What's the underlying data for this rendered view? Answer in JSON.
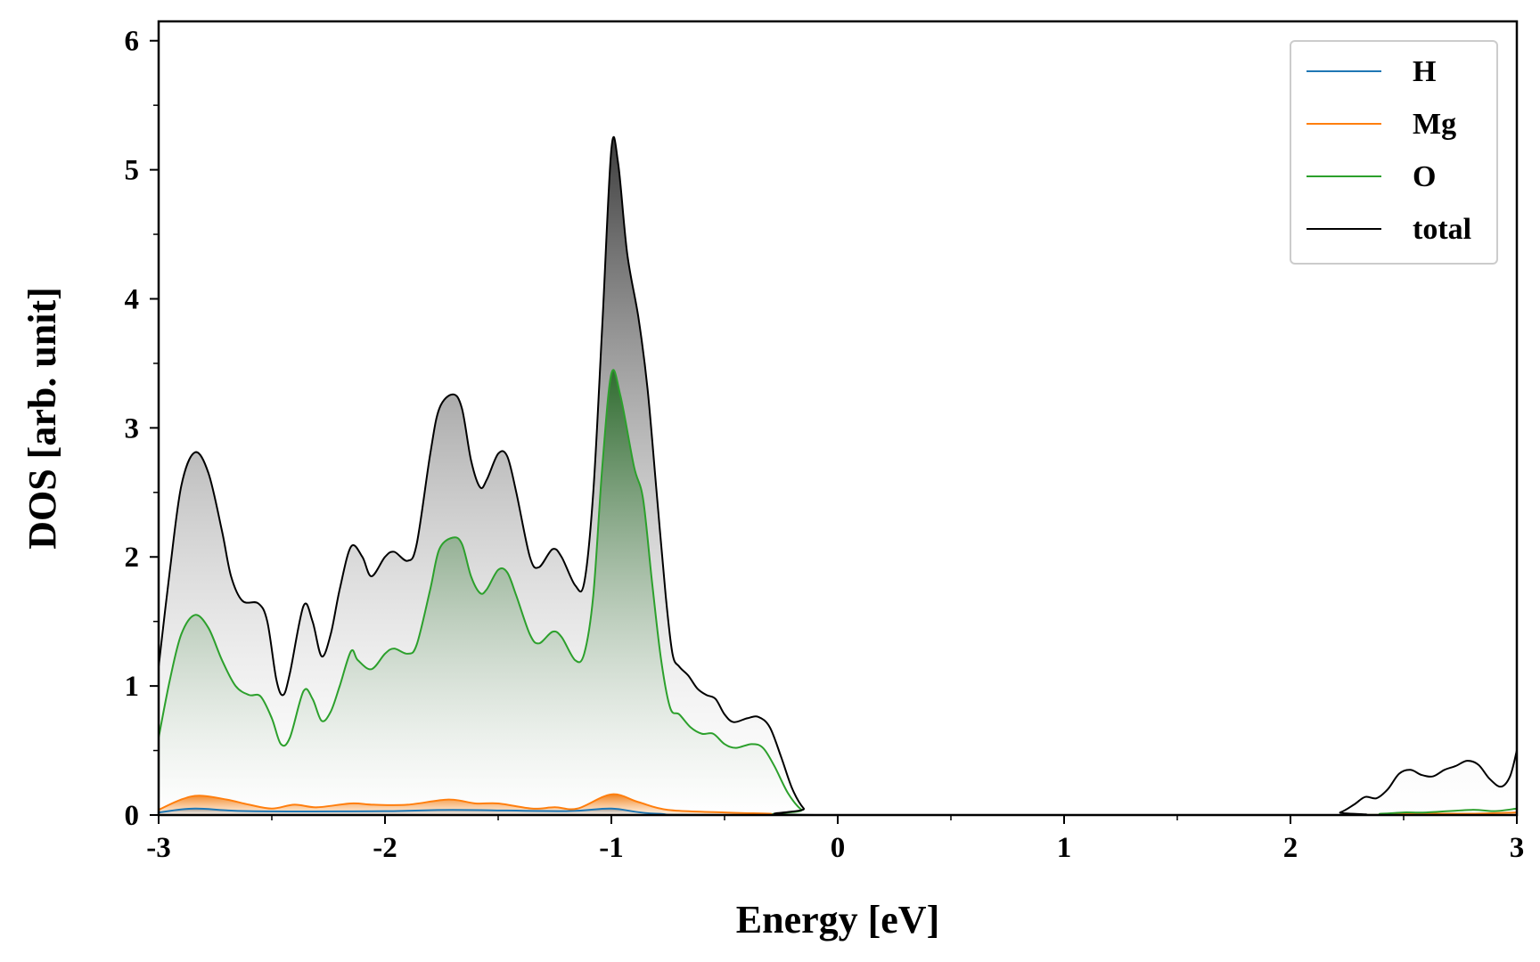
{
  "chart_data": {
    "type": "area",
    "title": "",
    "xlabel": "Energy [eV]",
    "ylabel": "DOS [arb. unit]",
    "xlim": [
      -3,
      3
    ],
    "ylim": [
      0,
      6.15
    ],
    "xticks": [
      -3,
      -2,
      -1,
      0,
      1,
      2,
      3
    ],
    "xtick_labels": [
      "-3",
      "-2",
      "-1",
      "0",
      "1",
      "2",
      "3"
    ],
    "yticks": [
      0,
      1,
      2,
      3,
      4,
      5,
      6
    ],
    "ytick_labels": [
      "0",
      "1",
      "2",
      "3",
      "4",
      "5",
      "6"
    ],
    "legend_position": "top-right",
    "grid": false,
    "series": [
      {
        "name": "H",
        "color": "#1f77b4",
        "points": [
          [
            -3.0,
            0.02
          ],
          [
            -2.84,
            0.05
          ],
          [
            -2.6,
            0.03
          ],
          [
            -2.0,
            0.03
          ],
          [
            -1.7,
            0.04
          ],
          [
            -1.2,
            0.03
          ],
          [
            -1.0,
            0.05
          ],
          [
            -0.8,
            0.01
          ],
          [
            -0.3,
            0.0
          ],
          [
            3.0,
            0.0
          ]
        ]
      },
      {
        "name": "Mg",
        "color": "#ff7f0e",
        "points": [
          [
            -3.0,
            0.04
          ],
          [
            -2.9,
            0.12
          ],
          [
            -2.82,
            0.15
          ],
          [
            -2.7,
            0.12
          ],
          [
            -2.6,
            0.08
          ],
          [
            -2.5,
            0.05
          ],
          [
            -2.4,
            0.08
          ],
          [
            -2.3,
            0.06
          ],
          [
            -2.15,
            0.09
          ],
          [
            -2.05,
            0.08
          ],
          [
            -1.9,
            0.08
          ],
          [
            -1.72,
            0.12
          ],
          [
            -1.6,
            0.09
          ],
          [
            -1.5,
            0.09
          ],
          [
            -1.35,
            0.05
          ],
          [
            -1.25,
            0.06
          ],
          [
            -1.15,
            0.05
          ],
          [
            -1.0,
            0.16
          ],
          [
            -0.88,
            0.1
          ],
          [
            -0.75,
            0.04
          ],
          [
            -0.5,
            0.02
          ],
          [
            -0.3,
            0.01
          ],
          [
            -0.15,
            0.0
          ],
          [
            2.2,
            0.0
          ],
          [
            2.5,
            0.01
          ],
          [
            2.8,
            0.01
          ],
          [
            3.0,
            0.02
          ]
        ]
      },
      {
        "name": "O",
        "color": "#2ca02c",
        "points": [
          [
            -3.0,
            0.6
          ],
          [
            -2.95,
            1.05
          ],
          [
            -2.9,
            1.4
          ],
          [
            -2.84,
            1.55
          ],
          [
            -2.78,
            1.45
          ],
          [
            -2.72,
            1.2
          ],
          [
            -2.66,
            1.0
          ],
          [
            -2.6,
            0.93
          ],
          [
            -2.55,
            0.92
          ],
          [
            -2.5,
            0.75
          ],
          [
            -2.46,
            0.55
          ],
          [
            -2.42,
            0.6
          ],
          [
            -2.36,
            0.96
          ],
          [
            -2.32,
            0.9
          ],
          [
            -2.28,
            0.73
          ],
          [
            -2.24,
            0.8
          ],
          [
            -2.2,
            1.0
          ],
          [
            -2.15,
            1.27
          ],
          [
            -2.12,
            1.2
          ],
          [
            -2.06,
            1.13
          ],
          [
            -2.0,
            1.25
          ],
          [
            -1.96,
            1.29
          ],
          [
            -1.9,
            1.25
          ],
          [
            -1.86,
            1.32
          ],
          [
            -1.8,
            1.75
          ],
          [
            -1.76,
            2.06
          ],
          [
            -1.7,
            2.15
          ],
          [
            -1.66,
            2.1
          ],
          [
            -1.62,
            1.85
          ],
          [
            -1.58,
            1.72
          ],
          [
            -1.55,
            1.75
          ],
          [
            -1.5,
            1.9
          ],
          [
            -1.46,
            1.88
          ],
          [
            -1.42,
            1.7
          ],
          [
            -1.36,
            1.4
          ],
          [
            -1.32,
            1.33
          ],
          [
            -1.26,
            1.42
          ],
          [
            -1.22,
            1.38
          ],
          [
            -1.16,
            1.2
          ],
          [
            -1.12,
            1.25
          ],
          [
            -1.08,
            1.7
          ],
          [
            -1.04,
            2.7
          ],
          [
            -1.0,
            3.42
          ],
          [
            -0.96,
            3.25
          ],
          [
            -0.9,
            2.7
          ],
          [
            -0.86,
            2.45
          ],
          [
            -0.82,
            1.8
          ],
          [
            -0.78,
            1.2
          ],
          [
            -0.74,
            0.83
          ],
          [
            -0.7,
            0.78
          ],
          [
            -0.65,
            0.68
          ],
          [
            -0.6,
            0.63
          ],
          [
            -0.55,
            0.63
          ],
          [
            -0.5,
            0.55
          ],
          [
            -0.45,
            0.52
          ],
          [
            -0.38,
            0.55
          ],
          [
            -0.33,
            0.52
          ],
          [
            -0.28,
            0.38
          ],
          [
            -0.22,
            0.17
          ],
          [
            -0.16,
            0.04
          ],
          [
            -0.1,
            0.0
          ],
          [
            2.2,
            0.0
          ],
          [
            2.4,
            0.01
          ],
          [
            2.5,
            0.02
          ],
          [
            2.6,
            0.02
          ],
          [
            2.8,
            0.04
          ],
          [
            2.9,
            0.03
          ],
          [
            3.0,
            0.05
          ]
        ]
      },
      {
        "name": "total",
        "color": "#000000",
        "points": [
          [
            -3.0,
            1.15
          ],
          [
            -2.95,
            1.9
          ],
          [
            -2.9,
            2.55
          ],
          [
            -2.84,
            2.81
          ],
          [
            -2.78,
            2.65
          ],
          [
            -2.72,
            2.2
          ],
          [
            -2.68,
            1.85
          ],
          [
            -2.63,
            1.66
          ],
          [
            -2.56,
            1.64
          ],
          [
            -2.52,
            1.5
          ],
          [
            -2.48,
            1.05
          ],
          [
            -2.45,
            0.93
          ],
          [
            -2.42,
            1.1
          ],
          [
            -2.36,
            1.62
          ],
          [
            -2.32,
            1.5
          ],
          [
            -2.28,
            1.23
          ],
          [
            -2.24,
            1.4
          ],
          [
            -2.2,
            1.75
          ],
          [
            -2.15,
            2.08
          ],
          [
            -2.1,
            2.0
          ],
          [
            -2.06,
            1.85
          ],
          [
            -2.0,
            2.0
          ],
          [
            -1.96,
            2.04
          ],
          [
            -1.9,
            1.97
          ],
          [
            -1.86,
            2.1
          ],
          [
            -1.8,
            2.8
          ],
          [
            -1.76,
            3.15
          ],
          [
            -1.7,
            3.26
          ],
          [
            -1.66,
            3.15
          ],
          [
            -1.62,
            2.75
          ],
          [
            -1.58,
            2.54
          ],
          [
            -1.55,
            2.6
          ],
          [
            -1.5,
            2.8
          ],
          [
            -1.46,
            2.78
          ],
          [
            -1.42,
            2.5
          ],
          [
            -1.36,
            2.0
          ],
          [
            -1.32,
            1.92
          ],
          [
            -1.26,
            2.06
          ],
          [
            -1.22,
            2.0
          ],
          [
            -1.16,
            1.78
          ],
          [
            -1.12,
            1.8
          ],
          [
            -1.08,
            2.5
          ],
          [
            -1.04,
            3.8
          ],
          [
            -1.0,
            5.16
          ],
          [
            -0.97,
            5.05
          ],
          [
            -0.93,
            4.35
          ],
          [
            -0.88,
            3.85
          ],
          [
            -0.84,
            3.3
          ],
          [
            -0.8,
            2.5
          ],
          [
            -0.76,
            1.7
          ],
          [
            -0.73,
            1.25
          ],
          [
            -0.7,
            1.15
          ],
          [
            -0.66,
            1.08
          ],
          [
            -0.62,
            0.98
          ],
          [
            -0.58,
            0.93
          ],
          [
            -0.54,
            0.9
          ],
          [
            -0.5,
            0.78
          ],
          [
            -0.46,
            0.72
          ],
          [
            -0.4,
            0.75
          ],
          [
            -0.35,
            0.76
          ],
          [
            -0.3,
            0.68
          ],
          [
            -0.25,
            0.45
          ],
          [
            -0.2,
            0.2
          ],
          [
            -0.15,
            0.05
          ],
          [
            -0.1,
            0.0
          ],
          [
            2.15,
            0.0
          ],
          [
            2.22,
            0.02
          ],
          [
            2.28,
            0.08
          ],
          [
            2.33,
            0.14
          ],
          [
            2.38,
            0.13
          ],
          [
            2.43,
            0.2
          ],
          [
            2.48,
            0.32
          ],
          [
            2.53,
            0.35
          ],
          [
            2.58,
            0.31
          ],
          [
            2.63,
            0.3
          ],
          [
            2.68,
            0.35
          ],
          [
            2.73,
            0.38
          ],
          [
            2.78,
            0.42
          ],
          [
            2.83,
            0.39
          ],
          [
            2.88,
            0.28
          ],
          [
            2.93,
            0.22
          ],
          [
            2.97,
            0.3
          ],
          [
            3.0,
            0.5
          ]
        ]
      }
    ]
  }
}
